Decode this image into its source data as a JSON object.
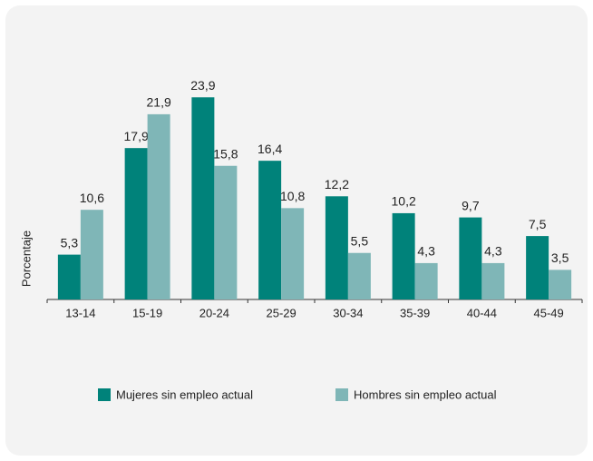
{
  "chart_data": {
    "type": "bar",
    "y_label": "Porcentaje",
    "categories": [
      "13-14",
      "15-19",
      "20-24",
      "25-29",
      "30-34",
      "35-39",
      "40-44",
      "45-49"
    ],
    "series": [
      {
        "name": "Mujeres sin empleo  actual",
        "color": "#00827a",
        "values": [
          5.3,
          17.9,
          23.9,
          16.4,
          12.2,
          10.2,
          9.7,
          7.5
        ],
        "value_labels": [
          "5,3",
          "17,9",
          "23,9",
          "16,4",
          "12,2",
          "10,2",
          "9,7",
          "7,5"
        ]
      },
      {
        "name": "Hombres sin empleo actual",
        "color": "#7fb6b7",
        "values": [
          10.6,
          21.9,
          15.8,
          10.8,
          5.5,
          4.3,
          4.3,
          3.5
        ],
        "value_labels": [
          "10,6",
          "21,9",
          "15,8",
          "10,8",
          "5,5",
          "4,3",
          "4,3",
          "3,5"
        ]
      }
    ],
    "ylim": [
      0,
      25
    ],
    "legend": "bottom"
  }
}
